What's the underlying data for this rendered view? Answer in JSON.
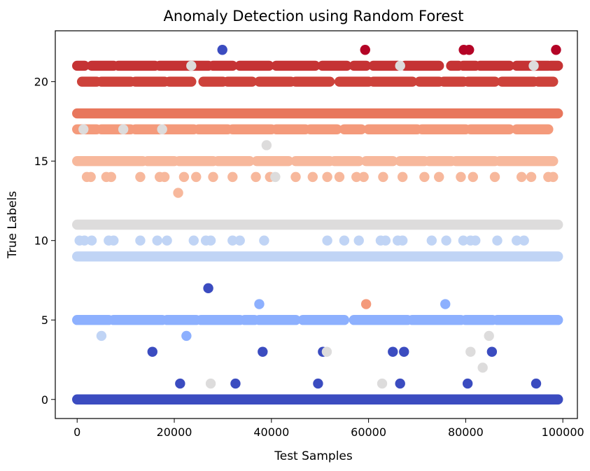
{
  "chart_data": {
    "type": "scatter",
    "title": "Anomaly Detection using Random Forest",
    "xlabel": "Test Samples",
    "ylabel": "True Labels",
    "xlim": [
      -4500,
      103000
    ],
    "ylim": [
      -1.2,
      23.2
    ],
    "x_ticks": [
      0,
      20000,
      40000,
      60000,
      80000,
      100000
    ],
    "x_tick_labels": [
      "0",
      "20000",
      "40000",
      "60000",
      "80000",
      "100000"
    ],
    "y_ticks": [
      0,
      5,
      10,
      15,
      20
    ],
    "y_tick_labels": [
      "0",
      "5",
      "10",
      "15",
      "20"
    ],
    "grid": false,
    "colormap": "coolwarm",
    "color_by": "predicted label",
    "dense_rows": [
      {
        "y": 0,
        "x_start": 0,
        "x_end": 99000,
        "color": "#3b4cc0"
      },
      {
        "y": 9,
        "x_start": 0,
        "x_end": 99000,
        "color": "#c0d4f5"
      },
      {
        "y": 11,
        "x_start": 0,
        "x_end": 99000,
        "color": "#dddcdc"
      },
      {
        "y": 18,
        "x_start": 0,
        "x_end": 99000,
        "color": "#e8765c"
      }
    ],
    "segmented_rows": [
      {
        "y": 21,
        "color": "#c53334",
        "segments": [
          [
            0,
            1500
          ],
          [
            3000,
            7500
          ],
          [
            8500,
            16000
          ],
          [
            17000,
            27000
          ],
          [
            28000,
            32000
          ],
          [
            33500,
            39500
          ],
          [
            41000,
            49000
          ],
          [
            50500,
            55500
          ],
          [
            57000,
            59500
          ],
          [
            61000,
            66000
          ],
          [
            67500,
            74500
          ],
          [
            77000,
            78500
          ],
          [
            79500,
            82000
          ],
          [
            83000,
            89000
          ],
          [
            90500,
            97000
          ],
          [
            97500,
            99000
          ]
        ]
      },
      {
        "y": 20,
        "color": "#cd423b",
        "segments": [
          [
            1000,
            4000
          ],
          [
            5000,
            11000
          ],
          [
            12000,
            18000
          ],
          [
            19000,
            23500
          ],
          [
            26000,
            30000
          ],
          [
            31000,
            36000
          ],
          [
            37500,
            44000
          ],
          [
            45000,
            52000
          ],
          [
            54000,
            60000
          ],
          [
            61000,
            69000
          ],
          [
            70500,
            74500
          ],
          [
            75500,
            79500
          ],
          [
            80500,
            86000
          ],
          [
            87500,
            94000
          ],
          [
            95000,
            98000
          ]
        ]
      },
      {
        "y": 17,
        "color": "#f49a7b",
        "segments": [
          [
            0,
            4000
          ],
          [
            5000,
            11000
          ],
          [
            12000,
            17000
          ],
          [
            18000,
            24000
          ],
          [
            25000,
            31000
          ],
          [
            32000,
            40000
          ],
          [
            41000,
            47000
          ],
          [
            48000,
            53500
          ],
          [
            55000,
            58500
          ],
          [
            60000,
            70000
          ],
          [
            71000,
            80000
          ],
          [
            81000,
            89000
          ],
          [
            90500,
            97000
          ]
        ]
      },
      {
        "y": 15,
        "color": "#f7b89c",
        "segments": [
          [
            0,
            13500
          ],
          [
            14500,
            20000
          ],
          [
            21000,
            28000
          ],
          [
            29000,
            35500
          ],
          [
            37000,
            43500
          ],
          [
            45000,
            52000
          ],
          [
            53000,
            58000
          ],
          [
            59500,
            65000
          ],
          [
            66500,
            71500
          ],
          [
            72500,
            77000
          ],
          [
            78000,
            86000
          ],
          [
            87000,
            98000
          ]
        ]
      },
      {
        "y": 5,
        "color": "#8db0fe",
        "segments": [
          [
            0,
            6500
          ],
          [
            7500,
            17500
          ],
          [
            18500,
            24500
          ],
          [
            25500,
            33500
          ],
          [
            34500,
            36500
          ],
          [
            37500,
            45000
          ],
          [
            46500,
            55000
          ],
          [
            57000,
            68000
          ],
          [
            69000,
            79000
          ],
          [
            80000,
            85500
          ],
          [
            86500,
            99000
          ]
        ]
      }
    ],
    "points": [
      {
        "x": 29900,
        "y": 22,
        "color": "#3b4cc0"
      },
      {
        "x": 59300,
        "y": 22,
        "color": "#b40426"
      },
      {
        "x": 79600,
        "y": 22,
        "color": "#b40426"
      },
      {
        "x": 80700,
        "y": 22,
        "color": "#b40426"
      },
      {
        "x": 98600,
        "y": 22,
        "color": "#b40426"
      },
      {
        "x": 23500,
        "y": 21,
        "color": "#dddcdc"
      },
      {
        "x": 66500,
        "y": 21,
        "color": "#dddcdc"
      },
      {
        "x": 94000,
        "y": 21,
        "color": "#dddcdc"
      },
      {
        "x": 1300,
        "y": 17,
        "color": "#dddcdc"
      },
      {
        "x": 9500,
        "y": 17,
        "color": "#dddcdc"
      },
      {
        "x": 17500,
        "y": 17,
        "color": "#dddcdc"
      },
      {
        "x": 39000,
        "y": 16,
        "color": "#dddcdc"
      },
      {
        "x": 2000,
        "y": 14,
        "color": "#f7b89c"
      },
      {
        "x": 2800,
        "y": 14,
        "color": "#f7b89c"
      },
      {
        "x": 6000,
        "y": 14,
        "color": "#f7b89c"
      },
      {
        "x": 7000,
        "y": 14,
        "color": "#f7b89c"
      },
      {
        "x": 13000,
        "y": 14,
        "color": "#f7b89c"
      },
      {
        "x": 17000,
        "y": 14,
        "color": "#f7b89c"
      },
      {
        "x": 18000,
        "y": 14,
        "color": "#f7b89c"
      },
      {
        "x": 22000,
        "y": 14,
        "color": "#f7b89c"
      },
      {
        "x": 24500,
        "y": 14,
        "color": "#f7b89c"
      },
      {
        "x": 28000,
        "y": 14,
        "color": "#f7b89c"
      },
      {
        "x": 32000,
        "y": 14,
        "color": "#f7b89c"
      },
      {
        "x": 36800,
        "y": 14,
        "color": "#f7b89c"
      },
      {
        "x": 39700,
        "y": 14,
        "color": "#f7b89c"
      },
      {
        "x": 40800,
        "y": 14,
        "color": "#dddcdc"
      },
      {
        "x": 45000,
        "y": 14,
        "color": "#f7b89c"
      },
      {
        "x": 48500,
        "y": 14,
        "color": "#f7b89c"
      },
      {
        "x": 51500,
        "y": 14,
        "color": "#f7b89c"
      },
      {
        "x": 54000,
        "y": 14,
        "color": "#f7b89c"
      },
      {
        "x": 57500,
        "y": 14,
        "color": "#f7b89c"
      },
      {
        "x": 59000,
        "y": 14,
        "color": "#f7b89c"
      },
      {
        "x": 63000,
        "y": 14,
        "color": "#f7b89c"
      },
      {
        "x": 67000,
        "y": 14,
        "color": "#f7b89c"
      },
      {
        "x": 71500,
        "y": 14,
        "color": "#f7b89c"
      },
      {
        "x": 74500,
        "y": 14,
        "color": "#f7b89c"
      },
      {
        "x": 79000,
        "y": 14,
        "color": "#f7b89c"
      },
      {
        "x": 81500,
        "y": 14,
        "color": "#f7b89c"
      },
      {
        "x": 86000,
        "y": 14,
        "color": "#f7b89c"
      },
      {
        "x": 91500,
        "y": 14,
        "color": "#f7b89c"
      },
      {
        "x": 93500,
        "y": 14,
        "color": "#f7b89c"
      },
      {
        "x": 97000,
        "y": 14,
        "color": "#f7b89c"
      },
      {
        "x": 98000,
        "y": 14,
        "color": "#f7b89c"
      },
      {
        "x": 20800,
        "y": 13,
        "color": "#f7b89c"
      },
      {
        "x": 500,
        "y": 10,
        "color": "#c0d4f5"
      },
      {
        "x": 1500,
        "y": 10,
        "color": "#c0d4f5"
      },
      {
        "x": 3000,
        "y": 10,
        "color": "#c0d4f5"
      },
      {
        "x": 6500,
        "y": 10,
        "color": "#c0d4f5"
      },
      {
        "x": 7500,
        "y": 10,
        "color": "#c0d4f5"
      },
      {
        "x": 13000,
        "y": 10,
        "color": "#c0d4f5"
      },
      {
        "x": 16500,
        "y": 10,
        "color": "#c0d4f5"
      },
      {
        "x": 18500,
        "y": 10,
        "color": "#c0d4f5"
      },
      {
        "x": 24000,
        "y": 10,
        "color": "#c0d4f5"
      },
      {
        "x": 26500,
        "y": 10,
        "color": "#c0d4f5"
      },
      {
        "x": 27500,
        "y": 10,
        "color": "#c0d4f5"
      },
      {
        "x": 32000,
        "y": 10,
        "color": "#c0d4f5"
      },
      {
        "x": 33500,
        "y": 10,
        "color": "#c0d4f5"
      },
      {
        "x": 38500,
        "y": 10,
        "color": "#c0d4f5"
      },
      {
        "x": 51500,
        "y": 10,
        "color": "#c0d4f5"
      },
      {
        "x": 55000,
        "y": 10,
        "color": "#c0d4f5"
      },
      {
        "x": 58000,
        "y": 10,
        "color": "#c0d4f5"
      },
      {
        "x": 62500,
        "y": 10,
        "color": "#c0d4f5"
      },
      {
        "x": 63500,
        "y": 10,
        "color": "#c0d4f5"
      },
      {
        "x": 66000,
        "y": 10,
        "color": "#c0d4f5"
      },
      {
        "x": 67000,
        "y": 10,
        "color": "#c0d4f5"
      },
      {
        "x": 73000,
        "y": 10,
        "color": "#c0d4f5"
      },
      {
        "x": 76000,
        "y": 10,
        "color": "#c0d4f5"
      },
      {
        "x": 79500,
        "y": 10,
        "color": "#c0d4f5"
      },
      {
        "x": 81000,
        "y": 10,
        "color": "#c0d4f5"
      },
      {
        "x": 82000,
        "y": 10,
        "color": "#c0d4f5"
      },
      {
        "x": 86500,
        "y": 10,
        "color": "#c0d4f5"
      },
      {
        "x": 90500,
        "y": 10,
        "color": "#c0d4f5"
      },
      {
        "x": 92000,
        "y": 10,
        "color": "#c0d4f5"
      },
      {
        "x": 27000,
        "y": 7,
        "color": "#3b4cc0"
      },
      {
        "x": 37500,
        "y": 6,
        "color": "#8db0fe"
      },
      {
        "x": 59500,
        "y": 6,
        "color": "#f49a7b"
      },
      {
        "x": 75800,
        "y": 6,
        "color": "#8db0fe"
      },
      {
        "x": 5000,
        "y": 4,
        "color": "#c0d4f5"
      },
      {
        "x": 22500,
        "y": 4,
        "color": "#8db0fe"
      },
      {
        "x": 84800,
        "y": 4,
        "color": "#dddcdc"
      },
      {
        "x": 15500,
        "y": 3,
        "color": "#3b4cc0"
      },
      {
        "x": 38200,
        "y": 3,
        "color": "#3b4cc0"
      },
      {
        "x": 50600,
        "y": 3,
        "color": "#3b4cc0"
      },
      {
        "x": 51400,
        "y": 3,
        "color": "#dddcdc"
      },
      {
        "x": 65000,
        "y": 3,
        "color": "#3b4cc0"
      },
      {
        "x": 67300,
        "y": 3,
        "color": "#3b4cc0"
      },
      {
        "x": 81000,
        "y": 3,
        "color": "#dddcdc"
      },
      {
        "x": 85400,
        "y": 3,
        "color": "#3b4cc0"
      },
      {
        "x": 83500,
        "y": 2,
        "color": "#dddcdc"
      },
      {
        "x": 21200,
        "y": 1,
        "color": "#3b4cc0"
      },
      {
        "x": 27500,
        "y": 1,
        "color": "#dddcdc"
      },
      {
        "x": 32600,
        "y": 1,
        "color": "#3b4cc0"
      },
      {
        "x": 49600,
        "y": 1,
        "color": "#3b4cc0"
      },
      {
        "x": 62800,
        "y": 1,
        "color": "#dddcdc"
      },
      {
        "x": 66500,
        "y": 1,
        "color": "#3b4cc0"
      },
      {
        "x": 80400,
        "y": 1,
        "color": "#3b4cc0"
      },
      {
        "x": 94500,
        "y": 1,
        "color": "#3b4cc0"
      }
    ]
  }
}
